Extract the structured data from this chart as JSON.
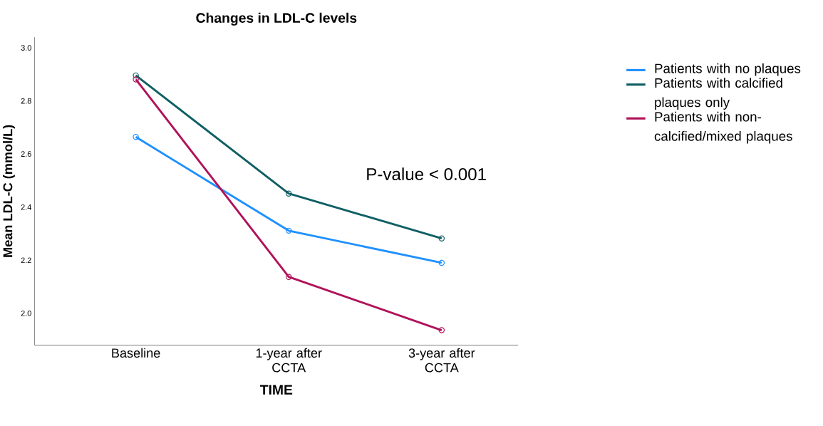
{
  "chart_data": {
    "type": "line",
    "title": "Changes in LDL-C levels",
    "xlabel": "TIME",
    "ylabel": "Mean LDL-C (mmol/L)",
    "categories": [
      "Baseline",
      "1-year after CCTA",
      "3-year after CCTA"
    ],
    "series": [
      {
        "name": "Patients with no plaques",
        "color": "#1e90ff",
        "values": [
          2.664,
          2.311,
          2.19
        ]
      },
      {
        "name": "Patients with calcified plaques only",
        "color": "#0f5f63",
        "values": [
          2.896,
          2.451,
          2.282
        ]
      },
      {
        "name": "Patients with non-calcified/mixed plaques",
        "color": "#b0125a",
        "values": [
          2.881,
          2.137,
          1.936
        ]
      }
    ],
    "ylim": [
      1.88,
      3.04
    ],
    "yticks": [
      {
        "value": 2,
        "label": "2.0"
      },
      {
        "value": 2.2,
        "label": "2.2"
      },
      {
        "value": 2.4,
        "label": "2.4"
      },
      {
        "value": 2.6,
        "label": "2.6"
      },
      {
        "value": 2.8,
        "label": "2.8"
      },
      {
        "value": 3,
        "label": "3.0"
      }
    ],
    "annotations": [
      "P-value < 0.001"
    ],
    "marker": "circle",
    "grid": false,
    "legend": "right",
    "line_style": "solid"
  }
}
